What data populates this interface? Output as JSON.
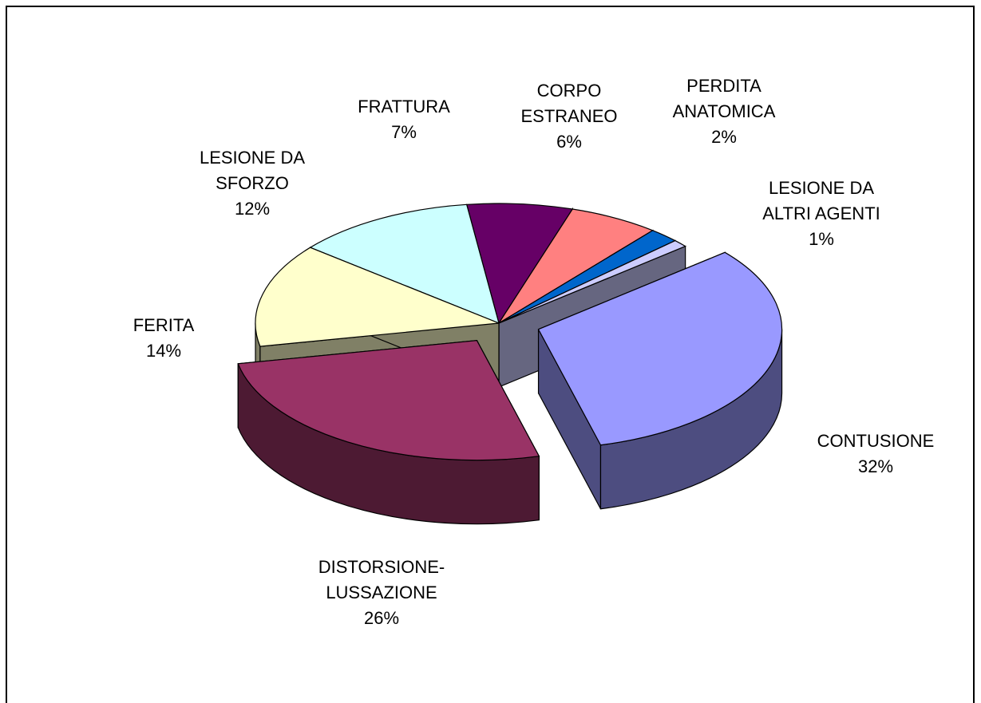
{
  "chart_data": {
    "type": "pie3d",
    "categories": [
      "CONTUSIONE",
      "DISTORSIONE-LUSSAZIONE",
      "FERITA",
      "LESIONE DA SFORZO",
      "FRATTURA",
      "CORPO ESTRANEO",
      "PERDITA ANATOMICA",
      "LESIONE DA ALTRI AGENTI"
    ],
    "values": [
      32,
      26,
      14,
      12,
      7,
      6,
      2,
      1
    ],
    "value_labels": [
      "32%",
      "26%",
      "14%",
      "12%",
      "7%",
      "6%",
      "2%",
      "1%"
    ],
    "colors": [
      "#9999FF",
      "#993366",
      "#FFFFCC",
      "#CCFFFF",
      "#660066",
      "#FF8080",
      "#0066CC",
      "#CCCCFF"
    ]
  }
}
